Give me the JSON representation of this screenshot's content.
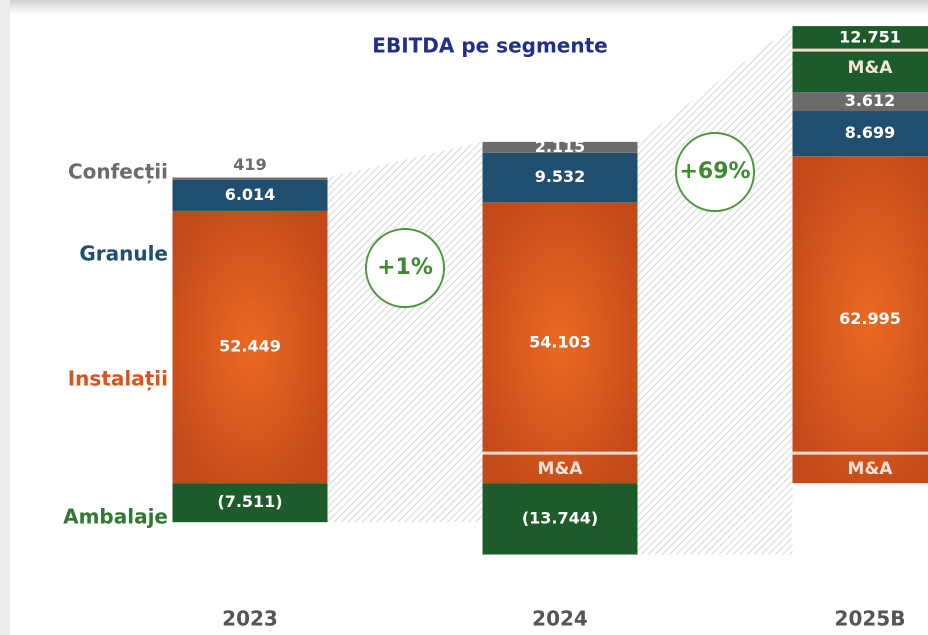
{
  "chart_data": {
    "type": "stacked_bar",
    "title": "EBITDA pe segmente",
    "categories": [
      "2023",
      "2024",
      "2025B"
    ],
    "series": [
      {
        "name": "Confecții",
        "color": "#6b6b6b",
        "values": [
          419,
          2115,
          3612
        ],
        "value_labels": [
          "419",
          "2.115",
          "3.612"
        ]
      },
      {
        "name": "Granule",
        "color": "#1f4e6e",
        "values": [
          6014,
          9532,
          8699
        ],
        "value_labels": [
          "6.014",
          "9.532",
          "8.699"
        ]
      },
      {
        "name": "Instalații",
        "color": "#d9531b",
        "values": [
          52449,
          54103,
          62995
        ],
        "value_labels": [
          "52.449",
          "54.103",
          "62.995"
        ]
      },
      {
        "name": "Ambalaje",
        "color": "#1e5b2a",
        "values": [
          -7511,
          -13744,
          12751
        ],
        "value_labels": [
          "(7.511)",
          "(13.744)",
          "12.751"
        ]
      }
    ],
    "annotations": [
      {
        "text": "M&A",
        "series": 2,
        "category": 1
      },
      {
        "text": "M&A",
        "series": 2,
        "category": 2
      },
      {
        "text": "M&A",
        "series": 3,
        "category": 2
      }
    ],
    "growth_labels": [
      "+1%",
      "+69%"
    ],
    "ylim": [
      -20000,
      90000
    ]
  }
}
